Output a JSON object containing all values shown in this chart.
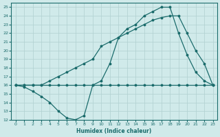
{
  "xlabel": "Humidex (Indice chaleur)",
  "xlim": [
    -0.5,
    23.5
  ],
  "ylim": [
    12,
    25.5
  ],
  "yticks": [
    12,
    13,
    14,
    15,
    16,
    17,
    18,
    19,
    20,
    21,
    22,
    23,
    24,
    25
  ],
  "xticks": [
    0,
    1,
    2,
    3,
    4,
    5,
    6,
    7,
    8,
    9,
    10,
    11,
    12,
    13,
    14,
    15,
    16,
    17,
    18,
    19,
    20,
    21,
    22,
    23
  ],
  "bg_color": "#d0eaea",
  "line_color": "#1a6b6b",
  "grid_color": "#b0d0d0",
  "line1_x": [
    0,
    1,
    2,
    3,
    4,
    5,
    6,
    7,
    8,
    9,
    10,
    11,
    12,
    13,
    14,
    15,
    16,
    17,
    18,
    19,
    20,
    21,
    22,
    23
  ],
  "line1_y": [
    16,
    15.8,
    15.3,
    14.7,
    14.0,
    13.0,
    12.2,
    12.0,
    12.5,
    16.0,
    16.5,
    18.5,
    21.5,
    22.5,
    23.0,
    24.0,
    24.5,
    25.0,
    25.0,
    22.0,
    19.5,
    17.5,
    16.5,
    16.0
  ],
  "line2_x": [
    0,
    1,
    2,
    3,
    4,
    5,
    6,
    7,
    8,
    9,
    10,
    11,
    12,
    13,
    14,
    15,
    16,
    17,
    18,
    19,
    20,
    21,
    22,
    23
  ],
  "line2_y": [
    16.0,
    16.0,
    16.0,
    16.0,
    16.0,
    16.0,
    16.0,
    16.0,
    16.0,
    16.0,
    16.0,
    16.0,
    16.0,
    16.0,
    16.0,
    16.0,
    16.0,
    16.0,
    16.0,
    16.0,
    16.0,
    16.0,
    16.0,
    16.0
  ],
  "line3_x": [
    0,
    1,
    2,
    3,
    4,
    5,
    6,
    7,
    8,
    9,
    10,
    11,
    12,
    13,
    14,
    15,
    16,
    17,
    18,
    19,
    20,
    21,
    22,
    23
  ],
  "line3_y": [
    16.0,
    16.0,
    16.0,
    16.0,
    16.5,
    17.0,
    17.5,
    18.0,
    18.5,
    19.0,
    20.5,
    21.0,
    21.5,
    22.0,
    22.5,
    23.0,
    23.5,
    23.8,
    24.0,
    24.0,
    22.0,
    20.0,
    18.5,
    16.0
  ]
}
